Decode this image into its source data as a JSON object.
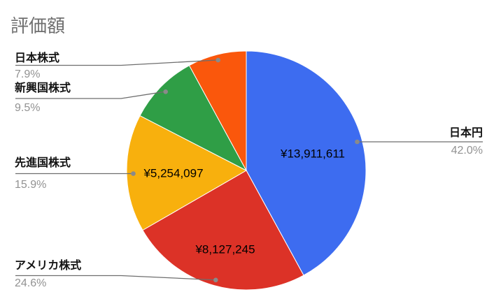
{
  "chart_data": {
    "type": "pie",
    "title": "評価額",
    "currency": "JPY",
    "direction": "clockwise",
    "start_angle_deg": 0,
    "legend_position": "outside-labels-with-leader-lines",
    "colors": {
      "label_text": "#141414",
      "percent_text": "#929292",
      "leader_line": "#6e6e6e",
      "leader_dot": "#8a8a8a",
      "background": "#ffffff"
    },
    "slices": [
      {
        "label": "日本円",
        "percent": 42.0,
        "percent_label": "42.0%",
        "value": 13911611,
        "value_label": "¥13,911,611",
        "color": "#3D6CF0"
      },
      {
        "label": "アメリカ株式",
        "percent": 24.6,
        "percent_label": "24.6%",
        "value": 8127245,
        "value_label": "¥8,127,245",
        "color": "#DC3227"
      },
      {
        "label": "先進国株式",
        "percent": 15.9,
        "percent_label": "15.9%",
        "value": 5254097,
        "value_label": "¥5,254,097",
        "color": "#F8B00D"
      },
      {
        "label": "新興国株式",
        "percent": 9.5,
        "percent_label": "9.5%",
        "color": "#2F9E46"
      },
      {
        "label": "日本株式",
        "percent": 7.9,
        "percent_label": "7.9%",
        "color": "#FA570C"
      }
    ]
  }
}
